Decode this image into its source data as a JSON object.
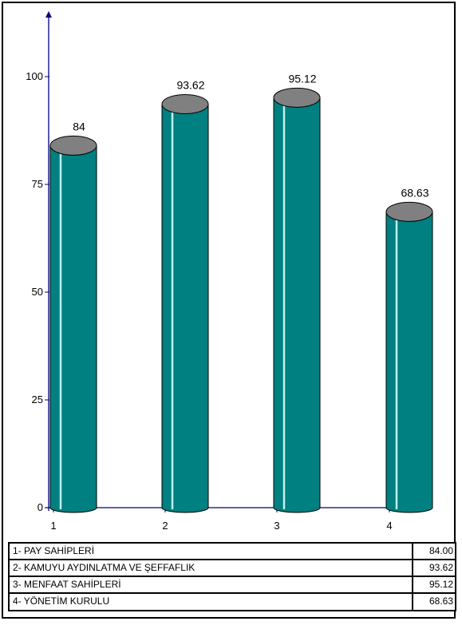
{
  "chart_data": {
    "type": "bar",
    "categories": [
      "1",
      "2",
      "3",
      "4"
    ],
    "values": [
      84,
      93.62,
      95.12,
      68.63
    ],
    "value_labels": [
      "84",
      "93.62",
      "95.12",
      "68.63"
    ],
    "title": "",
    "xlabel": "",
    "ylabel": "",
    "ylim": [
      0,
      100
    ],
    "yticks": [
      "0",
      "25",
      "50",
      "75",
      "100"
    ],
    "grid": false,
    "style": "3d-cylinder",
    "colors": {
      "bar_body": "#008080",
      "bar_highlight": "#bff2f2",
      "bar_cap": "#808080",
      "axis": "#000080"
    }
  },
  "legend": {
    "rows": [
      {
        "label": "1- PAY SAHİPLERİ",
        "value": "84.00"
      },
      {
        "label": "2- KAMUYU AYDINLATMA VE ŞEFFAFLIK",
        "value": "93.62"
      },
      {
        "label": "3- MENFAAT SAHİPLERİ",
        "value": "95.12"
      },
      {
        "label": "4- YÖNETİM KURULU",
        "value": "68.63"
      }
    ]
  }
}
